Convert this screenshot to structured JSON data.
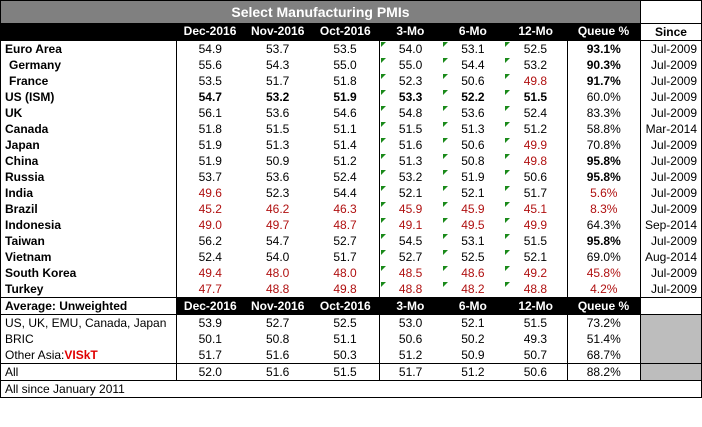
{
  "title": "Select Manufacturing PMIs",
  "columns": [
    "Dec-2016",
    "Nov-2016",
    "Oct-2016",
    "3-Mo",
    "6-Mo",
    "12-Mo",
    "Queue %",
    "Since"
  ],
  "countries": [
    {
      "name": "Euro Area",
      "indent": false,
      "bold": false,
      "v": [
        "54.9",
        "53.7",
        "53.5",
        "54.0",
        "53.1",
        "52.5"
      ],
      "red": [
        0,
        0,
        0,
        0,
        0,
        0
      ],
      "queue": "93.1%",
      "queue_bold": true,
      "queue_red": false,
      "since": "Jul-2009"
    },
    {
      "name": "Germany",
      "indent": true,
      "bold": false,
      "v": [
        "55.6",
        "54.3",
        "55.0",
        "55.0",
        "54.4",
        "53.2"
      ],
      "red": [
        0,
        0,
        0,
        0,
        0,
        0
      ],
      "queue": "90.3%",
      "queue_bold": true,
      "queue_red": false,
      "since": "Jul-2009"
    },
    {
      "name": "France",
      "indent": true,
      "bold": false,
      "v": [
        "53.5",
        "51.7",
        "51.8",
        "52.3",
        "50.6",
        "49.8"
      ],
      "red": [
        0,
        0,
        0,
        0,
        0,
        1
      ],
      "queue": "91.7%",
      "queue_bold": true,
      "queue_red": false,
      "since": "Jul-2009"
    },
    {
      "name": "US (ISM)",
      "indent": false,
      "bold": true,
      "v": [
        "54.7",
        "53.2",
        "51.9",
        "53.3",
        "52.2",
        "51.5"
      ],
      "red": [
        0,
        0,
        0,
        0,
        0,
        0
      ],
      "queue": "60.0%",
      "queue_bold": false,
      "queue_red": false,
      "since": "Jul-2009"
    },
    {
      "name": "UK",
      "indent": false,
      "bold": false,
      "v": [
        "56.1",
        "53.6",
        "54.6",
        "54.8",
        "53.6",
        "52.4"
      ],
      "red": [
        0,
        0,
        0,
        0,
        0,
        0
      ],
      "queue": "83.3%",
      "queue_bold": false,
      "queue_red": false,
      "since": "Jul-2009"
    },
    {
      "name": "Canada",
      "indent": false,
      "bold": false,
      "v": [
        "51.8",
        "51.5",
        "51.1",
        "51.5",
        "51.3",
        "51.2"
      ],
      "red": [
        0,
        0,
        0,
        0,
        0,
        0
      ],
      "queue": "58.8%",
      "queue_bold": false,
      "queue_red": false,
      "since": "Mar-2014"
    },
    {
      "name": "Japan",
      "indent": false,
      "bold": false,
      "v": [
        "51.9",
        "51.3",
        "51.4",
        "51.6",
        "50.6",
        "49.9"
      ],
      "red": [
        0,
        0,
        0,
        0,
        0,
        1
      ],
      "queue": "70.8%",
      "queue_bold": false,
      "queue_red": false,
      "since": "Jul-2009"
    },
    {
      "name": "China",
      "indent": false,
      "bold": false,
      "v": [
        "51.9",
        "50.9",
        "51.2",
        "51.3",
        "50.8",
        "49.8"
      ],
      "red": [
        0,
        0,
        0,
        0,
        0,
        1
      ],
      "queue": "95.8%",
      "queue_bold": true,
      "queue_red": false,
      "since": "Jul-2009"
    },
    {
      "name": "Russia",
      "indent": false,
      "bold": false,
      "v": [
        "53.7",
        "53.6",
        "52.4",
        "53.2",
        "51.9",
        "50.6"
      ],
      "red": [
        0,
        0,
        0,
        0,
        0,
        0
      ],
      "queue": "95.8%",
      "queue_bold": true,
      "queue_red": false,
      "since": "Jul-2009"
    },
    {
      "name": "India",
      "indent": false,
      "bold": false,
      "v": [
        "49.6",
        "52.3",
        "54.4",
        "52.1",
        "52.1",
        "51.7"
      ],
      "red": [
        1,
        0,
        0,
        0,
        0,
        0
      ],
      "queue": "5.6%",
      "queue_bold": false,
      "queue_red": true,
      "since": "Jul-2009"
    },
    {
      "name": "Brazil",
      "indent": false,
      "bold": false,
      "v": [
        "45.2",
        "46.2",
        "46.3",
        "45.9",
        "45.9",
        "45.1"
      ],
      "red": [
        1,
        1,
        1,
        1,
        1,
        1
      ],
      "queue": "8.3%",
      "queue_bold": false,
      "queue_red": true,
      "since": "Jul-2009"
    },
    {
      "name": "Indonesia",
      "indent": false,
      "bold": false,
      "v": [
        "49.0",
        "49.7",
        "48.7",
        "49.1",
        "49.5",
        "49.9"
      ],
      "red": [
        1,
        1,
        1,
        1,
        1,
        1
      ],
      "queue": "64.3%",
      "queue_bold": false,
      "queue_red": false,
      "since": "Sep-2014"
    },
    {
      "name": "Taiwan",
      "indent": false,
      "bold": false,
      "v": [
        "56.2",
        "54.7",
        "52.7",
        "54.5",
        "53.1",
        "51.5"
      ],
      "red": [
        0,
        0,
        0,
        0,
        0,
        0
      ],
      "queue": "95.8%",
      "queue_bold": true,
      "queue_red": false,
      "since": "Jul-2009"
    },
    {
      "name": "Vietnam",
      "indent": false,
      "bold": false,
      "v": [
        "52.4",
        "54.0",
        "51.7",
        "52.7",
        "52.5",
        "52.1"
      ],
      "red": [
        0,
        0,
        0,
        0,
        0,
        0
      ],
      "queue": "69.0%",
      "queue_bold": false,
      "queue_red": false,
      "since": "Aug-2014"
    },
    {
      "name": "South Korea",
      "indent": false,
      "bold": false,
      "v": [
        "49.4",
        "48.0",
        "48.0",
        "48.5",
        "48.6",
        "49.2"
      ],
      "red": [
        1,
        1,
        1,
        1,
        1,
        1
      ],
      "queue": "45.8%",
      "queue_bold": false,
      "queue_red": true,
      "since": "Jul-2009"
    },
    {
      "name": "Turkey",
      "indent": false,
      "bold": false,
      "v": [
        "47.7",
        "48.8",
        "49.8",
        "48.8",
        "48.2",
        "48.8"
      ],
      "red": [
        1,
        1,
        1,
        1,
        1,
        1
      ],
      "queue": "4.2%",
      "queue_bold": false,
      "queue_red": true,
      "since": "Jul-2009"
    }
  ],
  "average": {
    "label": "Average: Unweighted",
    "rows": [
      {
        "name": "US, UK, EMU, Canada, Japan",
        "v": [
          "53.9",
          "52.7",
          "52.5",
          "53.0",
          "52.1",
          "51.5"
        ],
        "queue": "73.2%"
      },
      {
        "name": "BRIC",
        "v": [
          "50.1",
          "50.8",
          "51.1",
          "50.6",
          "50.2",
          "49.3"
        ],
        "queue": "51.4%"
      },
      {
        "name": "Other Asia:",
        "highlight": "VISkT",
        "v": [
          "51.7",
          "51.6",
          "50.3",
          "51.2",
          "50.9",
          "50.7"
        ],
        "queue": "68.7%"
      }
    ],
    "all": {
      "name": "All",
      "v": [
        "52.0",
        "51.6",
        "51.5",
        "51.7",
        "51.2",
        "50.6"
      ],
      "queue": "88.2%"
    }
  },
  "footnote": "All since January 2011"
}
